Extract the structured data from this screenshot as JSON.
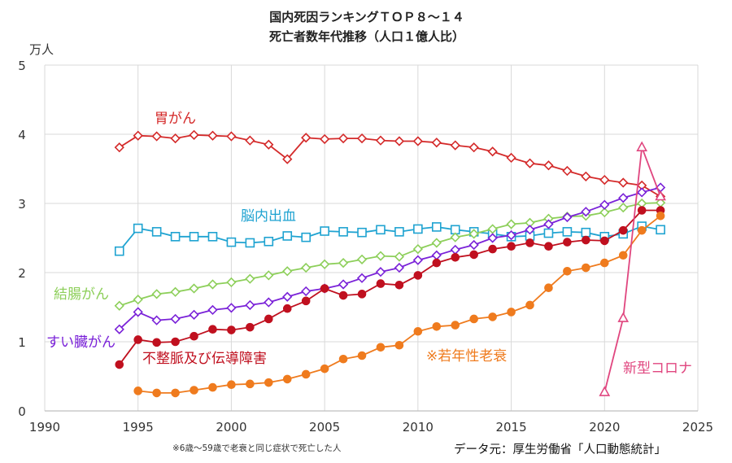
{
  "chart_data": {
    "type": "line",
    "title": "国内死因ランキングＴＯＰ８～１４",
    "subtitle": "死亡者数年代推移（人口１億人比）",
    "ylabel": "万人",
    "xlabel": "",
    "xlim": [
      1990,
      2025
    ],
    "ylim": [
      0,
      5
    ],
    "x_ticks": [
      "1990",
      "1995",
      "2000",
      "2005",
      "2010",
      "2015",
      "2020",
      "2025"
    ],
    "y_ticks": [
      "0",
      "1",
      "2",
      "3",
      "4",
      "5"
    ],
    "grid": true,
    "legend": "inline labels",
    "footnote": "※6歳～59歳で老衰と同じ症状で死亡した人",
    "source": "データ元：厚生労働省「人口動態統計」",
    "series": [
      {
        "name": "胃がん",
        "color": "#d42a2a",
        "marker": "diamond-open",
        "x": [
          1994,
          1995,
          1996,
          1997,
          1998,
          1999,
          2000,
          2001,
          2002,
          2003,
          2004,
          2005,
          2006,
          2007,
          2008,
          2009,
          2010,
          2011,
          2012,
          2013,
          2014,
          2015,
          2016,
          2017,
          2018,
          2019,
          2020,
          2021,
          2022,
          2023
        ],
        "y": [
          3.81,
          3.98,
          3.97,
          3.94,
          3.99,
          3.98,
          3.97,
          3.91,
          3.85,
          3.64,
          3.95,
          3.93,
          3.94,
          3.94,
          3.91,
          3.9,
          3.9,
          3.88,
          3.84,
          3.81,
          3.75,
          3.66,
          3.58,
          3.55,
          3.47,
          3.39,
          3.34,
          3.3,
          3.26,
          3.1
        ]
      },
      {
        "name": "脳内出血",
        "color": "#1fa3d1",
        "marker": "square-open",
        "x": [
          1994,
          1995,
          1996,
          1997,
          1998,
          1999,
          2000,
          2001,
          2002,
          2003,
          2004,
          2005,
          2006,
          2007,
          2008,
          2009,
          2010,
          2011,
          2012,
          2013,
          2014,
          2015,
          2016,
          2017,
          2018,
          2019,
          2020,
          2021,
          2022,
          2023
        ],
        "y": [
          2.31,
          2.64,
          2.59,
          2.52,
          2.52,
          2.52,
          2.44,
          2.43,
          2.45,
          2.53,
          2.51,
          2.6,
          2.59,
          2.58,
          2.62,
          2.59,
          2.63,
          2.66,
          2.62,
          2.59,
          2.56,
          2.52,
          2.53,
          2.57,
          2.59,
          2.58,
          2.52,
          2.56,
          2.67,
          2.62
        ]
      },
      {
        "name": "結腸がん",
        "color": "#8dcf5a",
        "marker": "diamond-open",
        "x": [
          1994,
          1995,
          1996,
          1997,
          1998,
          1999,
          2000,
          2001,
          2002,
          2003,
          2004,
          2005,
          2006,
          2007,
          2008,
          2009,
          2010,
          2011,
          2012,
          2013,
          2014,
          2015,
          2016,
          2017,
          2018,
          2019,
          2020,
          2021,
          2022,
          2023
        ],
        "y": [
          1.52,
          1.61,
          1.69,
          1.72,
          1.77,
          1.83,
          1.86,
          1.91,
          1.96,
          2.02,
          2.07,
          2.12,
          2.14,
          2.19,
          2.24,
          2.23,
          2.34,
          2.43,
          2.51,
          2.56,
          2.63,
          2.7,
          2.72,
          2.78,
          2.81,
          2.82,
          2.87,
          2.94,
          3.0,
          3.01
        ]
      },
      {
        "name": "すい臓がん",
        "color": "#7a22d8",
        "marker": "diamond-open",
        "x": [
          1994,
          1995,
          1996,
          1997,
          1998,
          1999,
          2000,
          2001,
          2002,
          2003,
          2004,
          2005,
          2006,
          2007,
          2008,
          2009,
          2010,
          2011,
          2012,
          2013,
          2014,
          2015,
          2016,
          2017,
          2018,
          2019,
          2020,
          2021,
          2022,
          2023
        ],
        "y": [
          1.18,
          1.43,
          1.31,
          1.33,
          1.39,
          1.46,
          1.49,
          1.53,
          1.57,
          1.65,
          1.73,
          1.77,
          1.83,
          1.92,
          2.01,
          2.07,
          2.18,
          2.25,
          2.33,
          2.4,
          2.5,
          2.54,
          2.62,
          2.7,
          2.8,
          2.88,
          2.98,
          3.08,
          3.16,
          3.23
        ]
      },
      {
        "name": "不整脈及び伝導障害",
        "color": "#c0101f",
        "marker": "circle-filled",
        "x": [
          1994,
          1995,
          1996,
          1997,
          1998,
          1999,
          2000,
          2001,
          2002,
          2003,
          2004,
          2005,
          2006,
          2007,
          2008,
          2009,
          2010,
          2011,
          2012,
          2013,
          2014,
          2015,
          2016,
          2017,
          2018,
          2019,
          2020,
          2021,
          2022,
          2023
        ],
        "y": [
          0.67,
          1.03,
          0.99,
          1.0,
          1.08,
          1.18,
          1.17,
          1.21,
          1.33,
          1.48,
          1.59,
          1.77,
          1.67,
          1.69,
          1.84,
          1.82,
          1.96,
          2.14,
          2.22,
          2.26,
          2.34,
          2.38,
          2.43,
          2.38,
          2.44,
          2.47,
          2.46,
          2.61,
          2.9,
          2.9
        ]
      },
      {
        "name": "※若年性老衰",
        "color": "#ef7b1e",
        "marker": "circle-filled",
        "x": [
          1995,
          1996,
          1997,
          1998,
          1999,
          2000,
          2001,
          2002,
          2003,
          2004,
          2005,
          2006,
          2007,
          2008,
          2009,
          2010,
          2011,
          2012,
          2013,
          2014,
          2015,
          2016,
          2017,
          2018,
          2019,
          2020,
          2021,
          2022,
          2023
        ],
        "y": [
          0.29,
          0.26,
          0.26,
          0.3,
          0.34,
          0.38,
          0.39,
          0.41,
          0.46,
          0.53,
          0.61,
          0.75,
          0.8,
          0.92,
          0.95,
          1.15,
          1.22,
          1.24,
          1.33,
          1.36,
          1.43,
          1.53,
          1.78,
          2.02,
          2.07,
          2.14,
          2.25,
          2.61,
          2.82
        ]
      },
      {
        "name": "新型コロナ",
        "color": "#e0467f",
        "marker": "triangle-open",
        "x": [
          2020,
          2021,
          2022,
          2023
        ],
        "y": [
          0.27,
          1.34,
          3.81,
          3.1
        ]
      }
    ]
  }
}
